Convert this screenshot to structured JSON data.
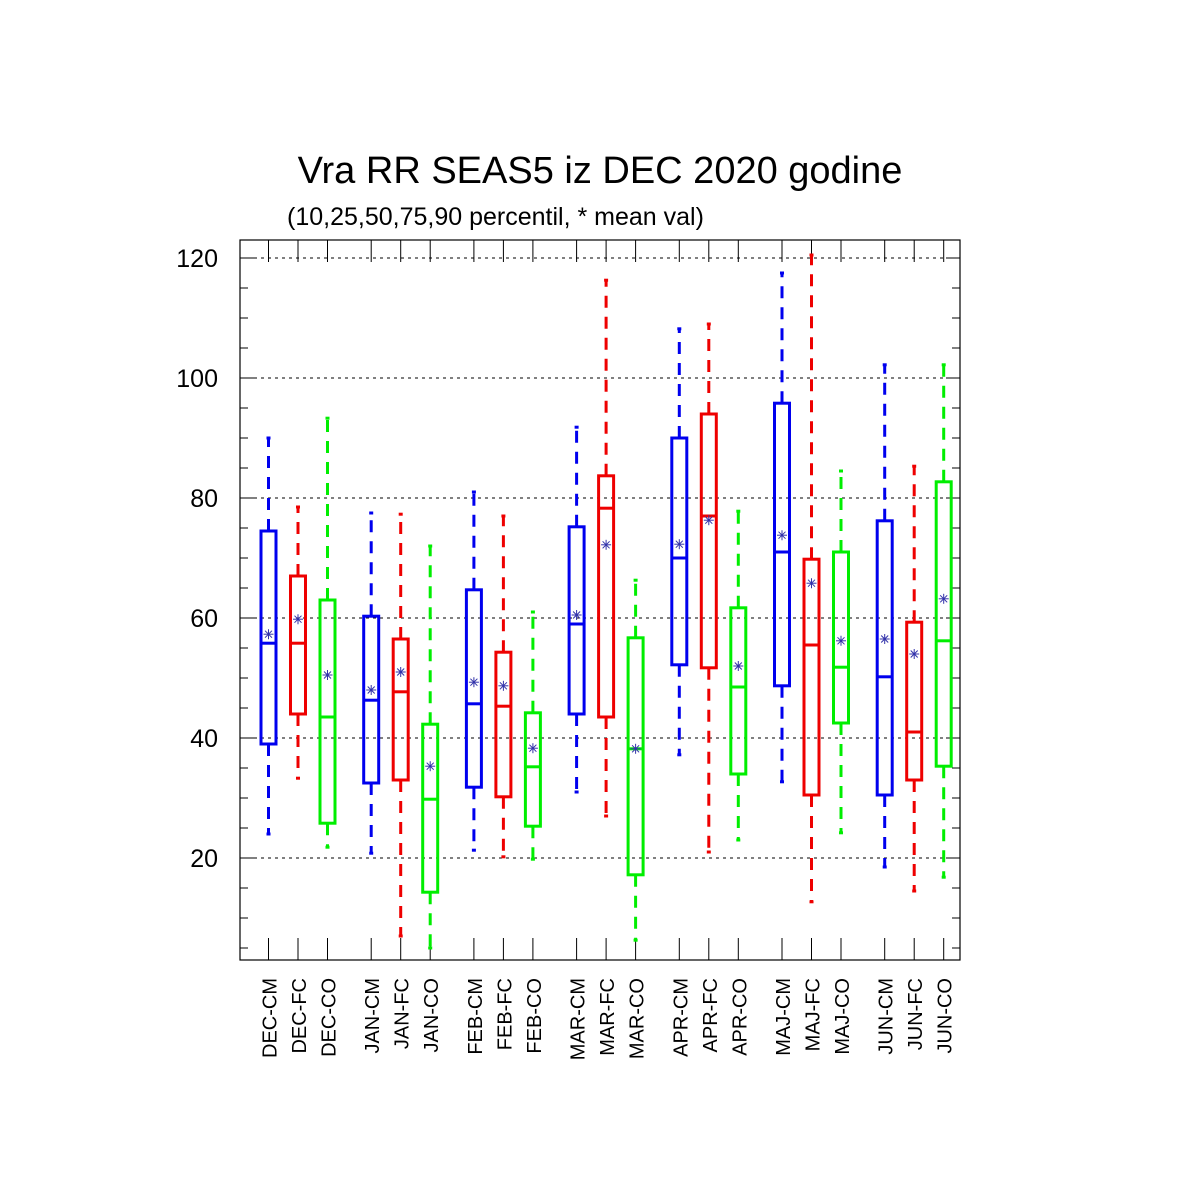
{
  "chart_data": {
    "type": "boxplot",
    "title": "Vra RR SEAS5 iz DEC 2020 godine",
    "subtitle": "(10,25,50,75,90 percentil, * mean val)",
    "xlabel": "",
    "ylabel": "",
    "ylim": [
      3,
      123
    ],
    "yticks": [
      20,
      40,
      60,
      80,
      100,
      120
    ],
    "grid": "horizontal-dashed",
    "colors": {
      "CM": "#0000ee",
      "FC": "#ee0000",
      "CO": "#00ee00",
      "mean_marker": "#3333aa"
    },
    "categories": [
      "DEC-CM",
      "DEC-FC",
      "DEC-CO",
      "JAN-CM",
      "JAN-FC",
      "JAN-CO",
      "FEB-CM",
      "FEB-FC",
      "FEB-CO",
      "MAR-CM",
      "MAR-FC",
      "MAR-CO",
      "APR-CM",
      "APR-FC",
      "APR-CO",
      "MAJ-CM",
      "MAJ-FC",
      "MAJ-CO",
      "JUN-CM",
      "JUN-FC",
      "JUN-CO"
    ],
    "boxes": [
      {
        "category": "DEC-CM",
        "group": "CM",
        "p10": 24.0,
        "p25": 39.0,
        "p50": 55.8,
        "p75": 74.5,
        "p90": 90.0,
        "mean": 57.3
      },
      {
        "category": "DEC-FC",
        "group": "FC",
        "p10": 33.3,
        "p25": 44.0,
        "p50": 55.8,
        "p75": 67.0,
        "p90": 78.5,
        "mean": 59.8
      },
      {
        "category": "DEC-CO",
        "group": "CO",
        "p10": 21.8,
        "p25": 25.8,
        "p50": 43.5,
        "p75": 63.0,
        "p90": 93.3,
        "mean": 50.5
      },
      {
        "category": "JAN-CM",
        "group": "CM",
        "p10": 20.8,
        "p25": 32.5,
        "p50": 46.3,
        "p75": 60.3,
        "p90": 77.5,
        "mean": 48.0
      },
      {
        "category": "JAN-FC",
        "group": "FC",
        "p10": 7.0,
        "p25": 33.0,
        "p50": 47.7,
        "p75": 56.5,
        "p90": 77.3,
        "mean": 51.0
      },
      {
        "category": "JAN-CO",
        "group": "CO",
        "p10": 5.0,
        "p25": 14.3,
        "p50": 29.8,
        "p75": 42.3,
        "p90": 72.0,
        "mean": 35.3
      },
      {
        "category": "FEB-CM",
        "group": "CM",
        "p10": 21.3,
        "p25": 31.8,
        "p50": 45.7,
        "p75": 64.7,
        "p90": 81.0,
        "mean": 49.3
      },
      {
        "category": "FEB-FC",
        "group": "FC",
        "p10": 20.2,
        "p25": 30.2,
        "p50": 45.3,
        "p75": 54.3,
        "p90": 77.0,
        "mean": 48.7
      },
      {
        "category": "FEB-CO",
        "group": "CO",
        "p10": 19.8,
        "p25": 25.3,
        "p50": 35.2,
        "p75": 44.2,
        "p90": 61.0,
        "mean": 38.3
      },
      {
        "category": "MAR-CM",
        "group": "CM",
        "p10": 31.0,
        "p25": 44.0,
        "p50": 59.0,
        "p75": 75.2,
        "p90": 91.8,
        "mean": 60.5
      },
      {
        "category": "MAR-FC",
        "group": "FC",
        "p10": 27.0,
        "p25": 43.5,
        "p50": 78.3,
        "p75": 83.7,
        "p90": 116.3,
        "mean": 72.2
      },
      {
        "category": "MAR-CO",
        "group": "CO",
        "p10": 6.3,
        "p25": 17.2,
        "p50": 38.2,
        "p75": 56.7,
        "p90": 66.3,
        "mean": 38.2
      },
      {
        "category": "APR-CM",
        "group": "CM",
        "p10": 37.2,
        "p25": 52.2,
        "p50": 70.0,
        "p75": 90.0,
        "p90": 108.2,
        "mean": 72.3
      },
      {
        "category": "APR-FC",
        "group": "FC",
        "p10": 21.0,
        "p25": 51.7,
        "p50": 77.0,
        "p75": 94.0,
        "p90": 109.0,
        "mean": 76.3
      },
      {
        "category": "APR-CO",
        "group": "CO",
        "p10": 23.0,
        "p25": 34.0,
        "p50": 48.5,
        "p75": 61.7,
        "p90": 77.8,
        "mean": 52.0
      },
      {
        "category": "MAJ-CM",
        "group": "CM",
        "p10": 32.7,
        "p25": 48.7,
        "p50": 71.0,
        "p75": 95.8,
        "p90": 117.5,
        "mean": 73.8
      },
      {
        "category": "MAJ-FC",
        "group": "FC",
        "p10": 12.7,
        "p25": 30.5,
        "p50": 55.5,
        "p75": 69.8,
        "p90": 120.5,
        "mean": 65.8
      },
      {
        "category": "MAJ-CO",
        "group": "CO",
        "p10": 24.2,
        "p25": 42.5,
        "p50": 51.8,
        "p75": 71.0,
        "p90": 84.5,
        "mean": 56.2
      },
      {
        "category": "JUN-CM",
        "group": "CM",
        "p10": 18.5,
        "p25": 30.5,
        "p50": 50.2,
        "p75": 76.2,
        "p90": 102.2,
        "mean": 56.5
      },
      {
        "category": "JUN-FC",
        "group": "FC",
        "p10": 14.5,
        "p25": 33.0,
        "p50": 41.0,
        "p75": 59.3,
        "p90": 85.3,
        "mean": 54.0
      },
      {
        "category": "JUN-CO",
        "group": "CO",
        "p10": 16.8,
        "p25": 35.3,
        "p50": 56.2,
        "p75": 82.7,
        "p90": 102.2,
        "mean": 63.2
      }
    ]
  }
}
